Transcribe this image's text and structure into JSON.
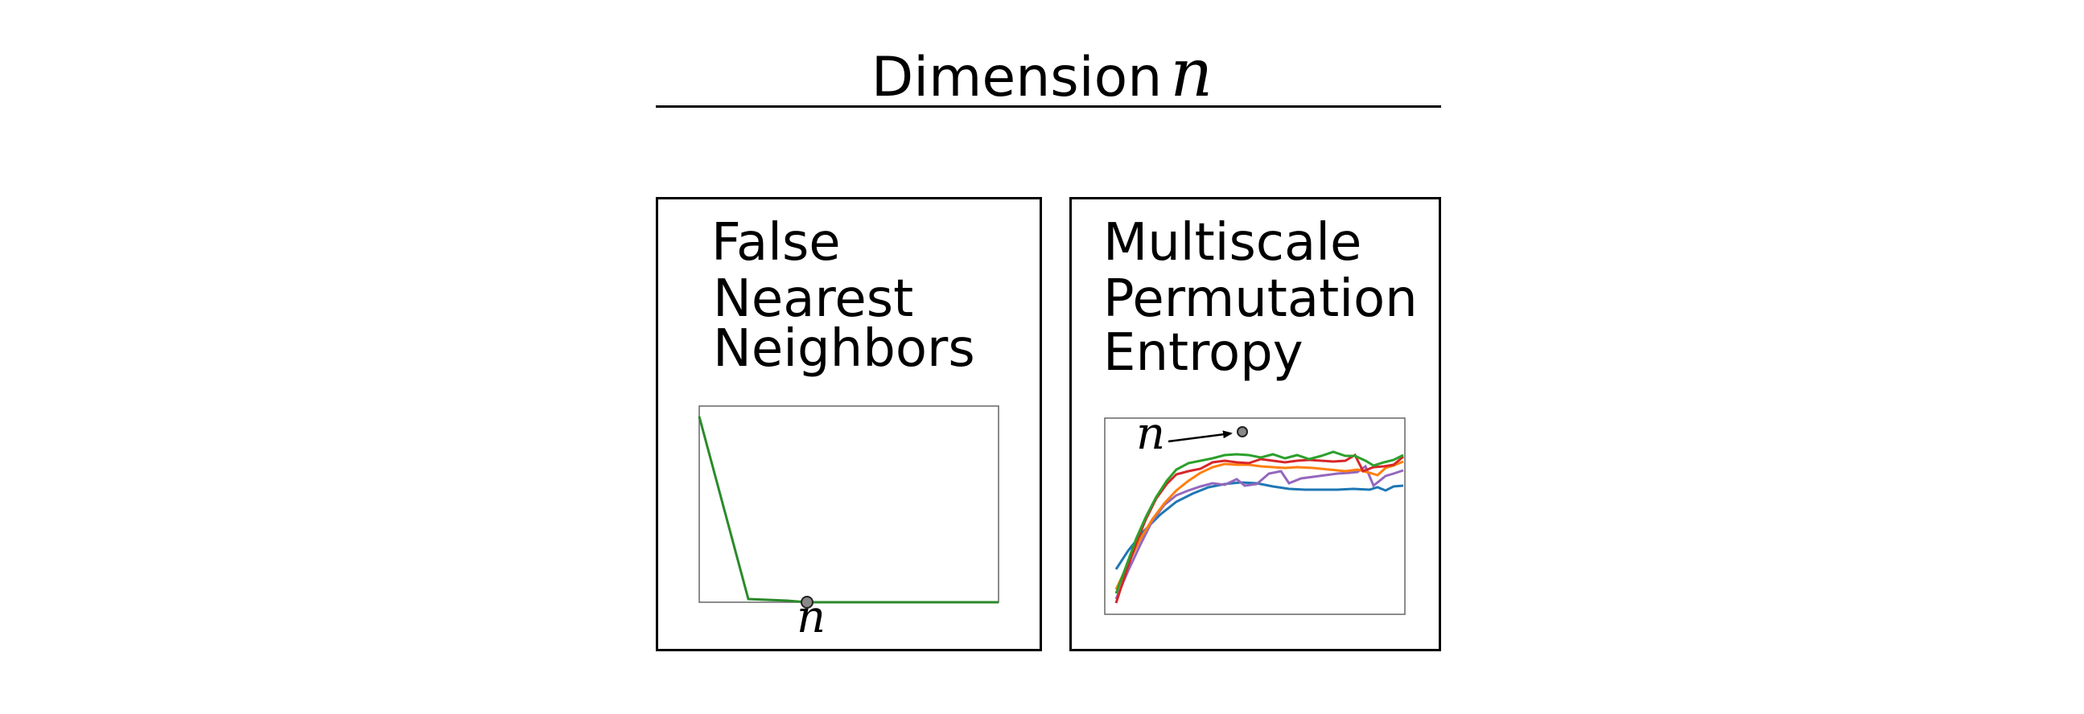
{
  "heading": {
    "text": "Dimension",
    "variable": "n"
  },
  "panels": [
    {
      "title_lines": [
        "False",
        "Nearest",
        "Neighbors"
      ],
      "marker_label": "n",
      "series_color": "#2a8a2a"
    },
    {
      "title_lines": [
        "Multiscale",
        "Permutation",
        "Entropy"
      ],
      "marker_label": "n",
      "series_colors": [
        "#2ca02c",
        "#d62728",
        "#ff7f0e",
        "#9467bd",
        "#1f77b4"
      ]
    }
  ]
}
